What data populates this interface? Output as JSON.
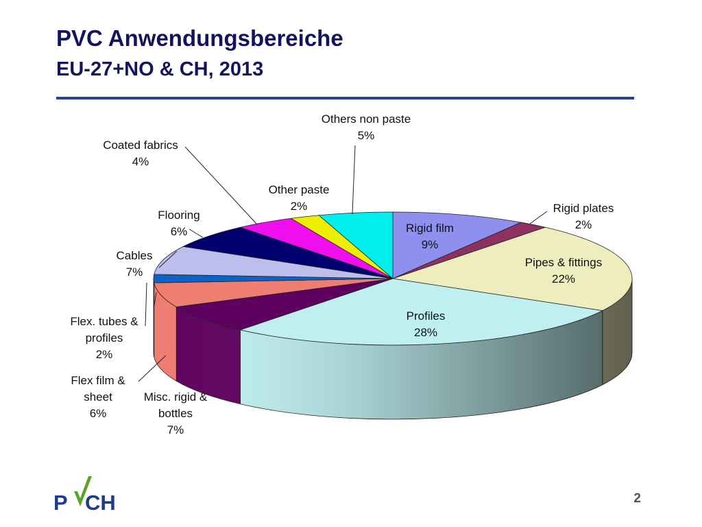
{
  "slide": {
    "title": "PVC Anwendungsbereiche",
    "subtitle": "EU-27+NO & CH, 2013",
    "page_number": "2",
    "logo_text": "PVCH",
    "accent_color": "#2c3e9c",
    "title_color": "#14145e"
  },
  "chart_data": {
    "type": "pie",
    "title": "",
    "three_d": true,
    "legend": "none",
    "unit": "%",
    "slices": [
      {
        "name": "Rigid film",
        "value": 9,
        "label": "9%",
        "color": "#8f8fef"
      },
      {
        "name": "Rigid plates",
        "value": 2,
        "label": "2%",
        "color": "#8e3161"
      },
      {
        "name": "Pipes & fittings",
        "value": 22,
        "label": "22%",
        "color": "#ededbe"
      },
      {
        "name": "Profiles",
        "value": 28,
        "label": "28%",
        "color": "#bfeff0"
      },
      {
        "name": "Misc. rigid & bottles",
        "value": 7,
        "label": "7%",
        "color": "#5e005e"
      },
      {
        "name": "Flex film & sheet",
        "value": 6,
        "label": "6%",
        "color": "#ee7d72"
      },
      {
        "name": "Flex. tubes & profiles",
        "value": 2,
        "label": "2%",
        "color": "#0d62c7"
      },
      {
        "name": "Cables",
        "value": 7,
        "label": "7%",
        "color": "#bebeec"
      },
      {
        "name": "Flooring",
        "value": 6,
        "label": "6%",
        "color": "#00006e"
      },
      {
        "name": "Coated fabrics",
        "value": 4,
        "label": "4%",
        "color": "#ee0eee"
      },
      {
        "name": "Other paste",
        "value": 2,
        "label": "2%",
        "color": "#eeee00"
      },
      {
        "name": "Others non paste",
        "value": 5,
        "label": "5%",
        "color": "#00eeee"
      }
    ]
  }
}
